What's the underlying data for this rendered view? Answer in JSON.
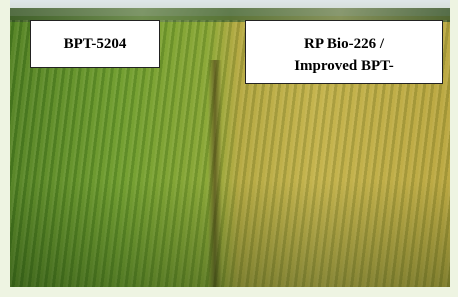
{
  "labels": [
    {
      "lines": [
        "BPT-5204"
      ]
    },
    {
      "lines": [
        "RP Bio-226 /",
        "Improved BPT-"
      ]
    }
  ]
}
